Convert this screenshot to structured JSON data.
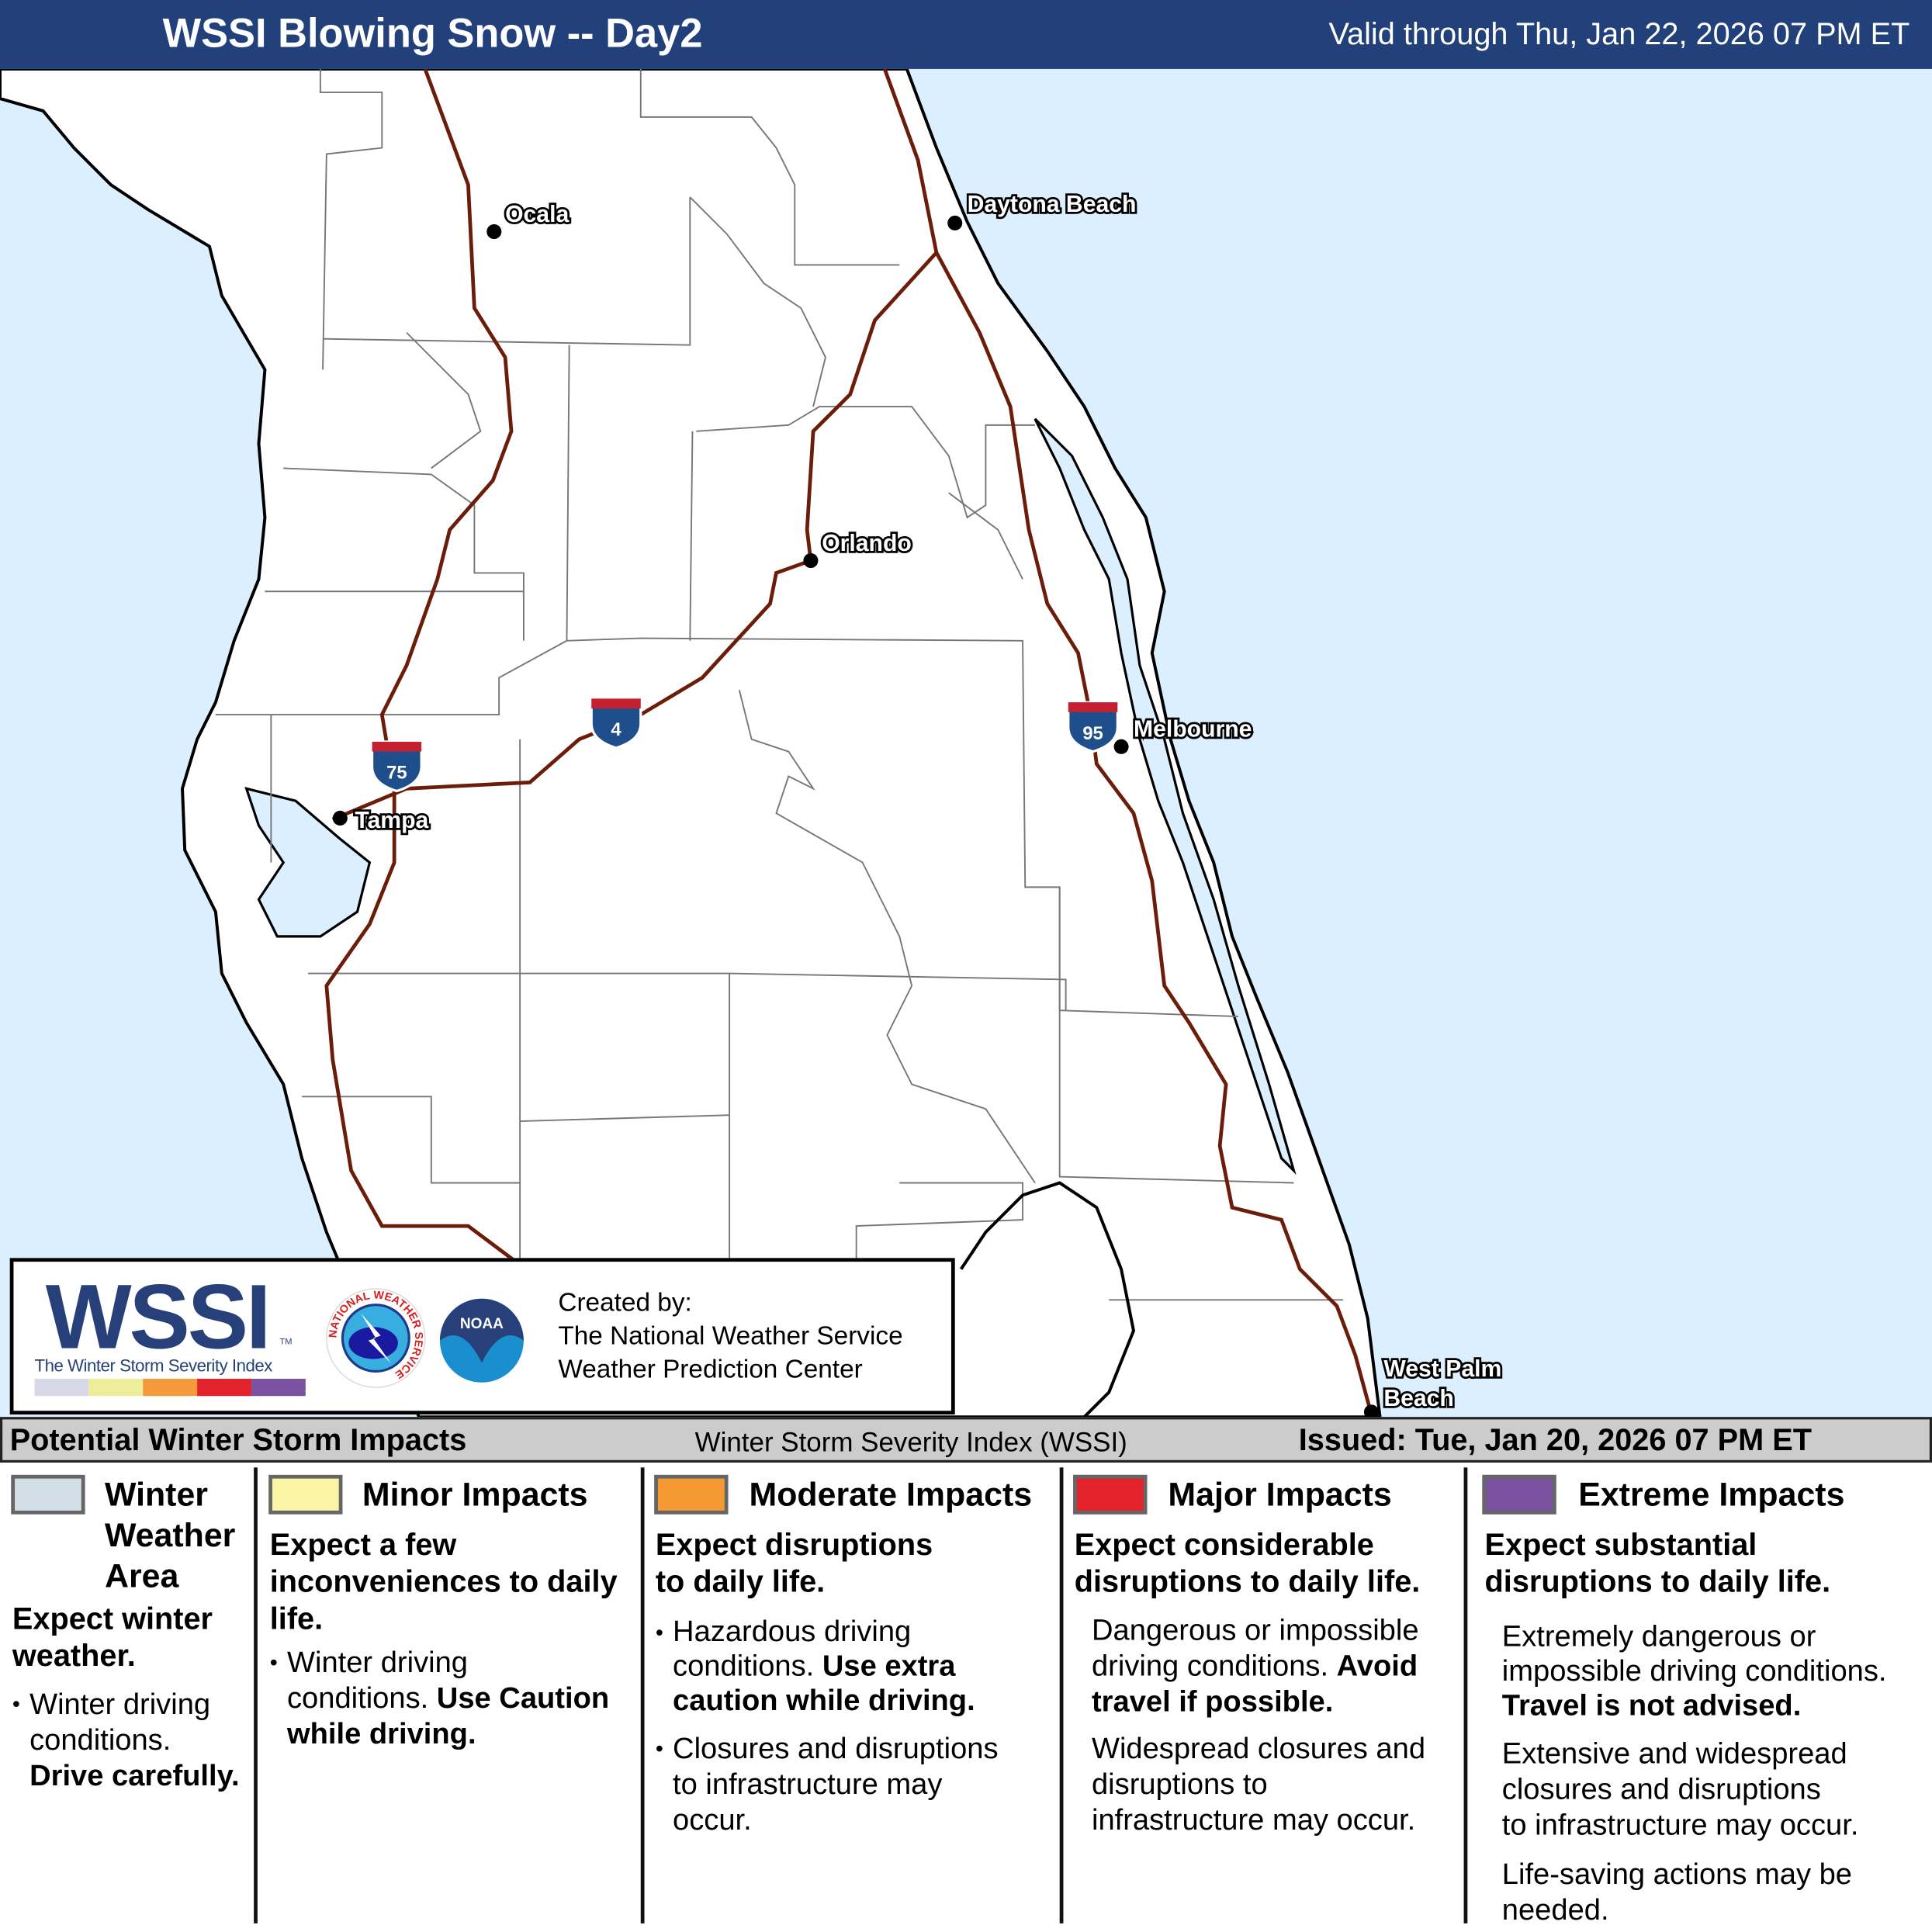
{
  "header": {
    "title": "WSSI Blowing Snow -- Day2",
    "valid": "Valid through Thu, Jan 22, 2026 07 PM ET",
    "bg_color": "#22407a"
  },
  "map": {
    "ocean_color": "#dcefff",
    "land_color": "#ffffff",
    "highway_color": "#6b1d0a",
    "cities": [
      {
        "name": "Ocala"
      },
      {
        "name": "Daytona Beach"
      },
      {
        "name": "Orlando"
      },
      {
        "name": "Melbourne"
      },
      {
        "name": "Tampa"
      },
      {
        "name": "West Palm"
      },
      {
        "name": "Beach"
      }
    ],
    "shields": [
      {
        "label": "75"
      },
      {
        "label": "4"
      },
      {
        "label": "95"
      }
    ]
  },
  "logo": {
    "wordmark": "WSSI",
    "tm": "TM",
    "subtitle": "The Winter Storm Severity Index",
    "strip_colors": [
      "#d8d8e8",
      "#eded9a",
      "#f59a3a",
      "#e4222b",
      "#7b52a0"
    ],
    "nws_text": "NATIONAL WEATHER SERVICE",
    "noaa_text": "NOAA",
    "created_by": "Created by:",
    "org1": "The National Weather Service",
    "org2": "Weather Prediction Center"
  },
  "bar": {
    "left": "Potential Winter Storm Impacts",
    "middle": "Winter Storm Severity Index (WSSI)",
    "right": "Issued: Tue, Jan 20, 2026 07 PM ET"
  },
  "legend": [
    {
      "title": "Winter Weather Area",
      "t1": "Winter",
      "t2": "Weather",
      "t3": "Area",
      "color": "#d3dfe7",
      "subtitle1": "Expect winter",
      "subtitle2": "weather.",
      "b1": "Winter driving",
      "b2": "conditions.",
      "b3": "Drive carefully."
    },
    {
      "title": "Minor Impacts",
      "color": "#f9f5a4",
      "subtitle1": "Expect a few",
      "subtitle2": "inconveniences to daily",
      "subtitle3": "life.",
      "b1": "Winter driving",
      "b2": "conditions. ",
      "b2b": "Use Caution",
      "b3": "while driving."
    },
    {
      "title": "Moderate Impacts",
      "color": "#f59a32",
      "subtitle1": "Expect disruptions",
      "subtitle2": "to daily life.",
      "b1": "Hazardous driving",
      "b2": "conditions. ",
      "b2b": "Use extra",
      "b3": "caution while driving.",
      "c1": "Closures and disruptions",
      "c2": "to infrastructure may",
      "c3": "occur."
    },
    {
      "title": "Major Impacts",
      "color": "#e4222b",
      "subtitle1": "Expect considerable",
      "subtitle2": "disruptions to daily life.",
      "b1": "Dangerous or impossible",
      "b2": "driving conditions. ",
      "b2b": "Avoid",
      "b3": "travel if possible.",
      "c1": "Widespread closures and",
      "c2": "disruptions to",
      "c3": "infrastructure may occur."
    },
    {
      "title": "Extreme Impacts",
      "color": "#7b52a0",
      "subtitle1": "Expect substantial",
      "subtitle2": "disruptions to daily life.",
      "b1": "Extremely dangerous or",
      "b2": "impossible driving conditions.",
      "b3": "Travel is not advised.",
      "c1": "Extensive and widespread",
      "c2": "closures and disruptions",
      "c3": "to infrastructure may occur.",
      "d1": "Life-saving actions may be",
      "d2": "needed."
    }
  ]
}
